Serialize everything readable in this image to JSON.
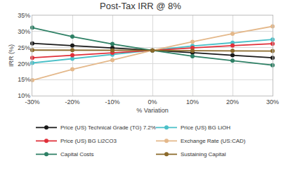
{
  "chart_data": {
    "type": "line",
    "title": "Post-Tax IRR @ 8%",
    "x_label": "% Variation",
    "y_label": "IRR (%)",
    "x": [
      -30,
      -20,
      -10,
      0,
      10,
      20,
      30
    ],
    "xlim": [
      -30,
      30
    ],
    "xticks": [
      {
        "value": -30,
        "label": "-30%"
      },
      {
        "value": -20,
        "label": "-20%"
      },
      {
        "value": -10,
        "label": "-10%"
      },
      {
        "value": 0,
        "label": "0%"
      },
      {
        "value": 10,
        "label": "10%"
      },
      {
        "value": 20,
        "label": "20%"
      },
      {
        "value": 30,
        "label": "30%"
      }
    ],
    "ylim": [
      10,
      35
    ],
    "yticks": [
      {
        "value": 10,
        "label": "10%"
      },
      {
        "value": 15,
        "label": "15%"
      },
      {
        "value": 20,
        "label": "20%"
      },
      {
        "value": 25,
        "label": "25%"
      },
      {
        "value": 30,
        "label": "30%"
      },
      {
        "value": 35,
        "label": "35%"
      }
    ],
    "grid": true,
    "legend": "bottom",
    "marker": "circle",
    "series": [
      {
        "name": "Price (US) Technical Grade (TG) 7.2%",
        "color": "#1a1a1a",
        "values": [
          26.3,
          25.6,
          24.9,
          24.1,
          23.4,
          22.6,
          21.8
        ]
      },
      {
        "name": "Price (US) BG LiOH",
        "color": "#4bc0c8",
        "values": [
          20.2,
          21.5,
          22.8,
          24.1,
          25.5,
          26.5,
          27.5
        ]
      },
      {
        "name": "Price (US) BG Li2CO3",
        "color": "#e0303a",
        "values": [
          21.8,
          22.6,
          23.4,
          24.1,
          24.9,
          25.6,
          26.2
        ]
      },
      {
        "name": "Exchange Rate (US:CAD)",
        "color": "#e4b88a",
        "values": [
          14.8,
          18.2,
          21.1,
          24.1,
          26.8,
          29.3,
          31.6
        ]
      },
      {
        "name": "Capital Costs",
        "color": "#2e8065",
        "values": [
          31.2,
          28.4,
          26.1,
          24.1,
          22.3,
          20.9,
          19.5
        ]
      },
      {
        "name": "Sustaining Capital",
        "color": "#8b6a2b",
        "values": [
          24.2,
          24.2,
          24.1,
          24.1,
          24.0,
          24.0,
          23.9
        ]
      }
    ]
  }
}
